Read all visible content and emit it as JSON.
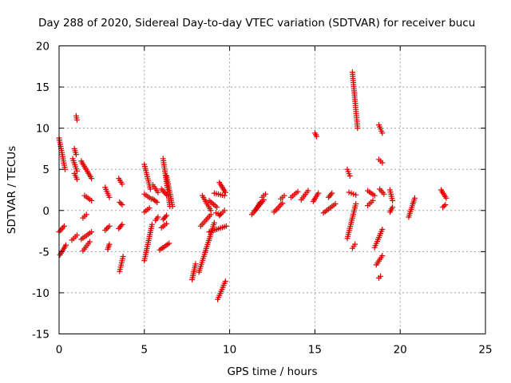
{
  "chart_data": {
    "type": "scatter",
    "title": "Day 288 of 2020, Sidereal Day-to-day VTEC variation (SDTVAR) for receiver bucu",
    "xlabel": "GPS time / hours",
    "ylabel": "SDTVAR / TECUs",
    "xlim": [
      0,
      25
    ],
    "ylim": [
      -15,
      20
    ],
    "xticks": [
      0,
      5,
      10,
      15,
      20,
      25
    ],
    "yticks": [
      -15,
      -10,
      -5,
      0,
      5,
      10,
      15,
      20
    ],
    "xtick_labels": [
      "0",
      "5",
      "10",
      "15",
      "20",
      "25"
    ],
    "ytick_labels": [
      "-15",
      "-10",
      "-5",
      "0",
      "5",
      "10",
      "15",
      "20"
    ],
    "grid": true,
    "marker": "+",
    "color": "#e00000",
    "tracks": [
      {
        "x": [
          0.0,
          0.35
        ],
        "y": [
          8.8,
          5.0
        ]
      },
      {
        "x": [
          0.05,
          0.4
        ],
        "y": [
          -5.4,
          -4.2
        ]
      },
      {
        "x": [
          0.0,
          0.3
        ],
        "y": [
          -2.6,
          -1.9
        ]
      },
      {
        "x": [
          0.8,
          1.05
        ],
        "y": [
          6.3,
          4.8
        ]
      },
      {
        "x": [
          0.9,
          1.0
        ],
        "y": [
          7.5,
          6.8
        ]
      },
      {
        "x": [
          0.9,
          1.05
        ],
        "y": [
          4.5,
          3.8
        ]
      },
      {
        "x": [
          1.0,
          1.05
        ],
        "y": [
          11.5,
          11.0
        ]
      },
      {
        "x": [
          0.75,
          1.05
        ],
        "y": [
          -3.6,
          -3.0
        ]
      },
      {
        "x": [
          1.3,
          1.9
        ],
        "y": [
          6.0,
          3.9
        ]
      },
      {
        "x": [
          1.5,
          1.9
        ],
        "y": [
          1.8,
          1.2
        ]
      },
      {
        "x": [
          1.3,
          1.9
        ],
        "y": [
          -3.5,
          -2.6
        ]
      },
      {
        "x": [
          1.4,
          1.8
        ],
        "y": [
          -4.9,
          -3.8
        ]
      },
      {
        "x": [
          1.4,
          1.6
        ],
        "y": [
          -0.9,
          -0.5
        ]
      },
      {
        "x": [
          2.7,
          2.95
        ],
        "y": [
          2.8,
          1.6
        ]
      },
      {
        "x": [
          2.7,
          2.95
        ],
        "y": [
          -2.4,
          -1.9
        ]
      },
      {
        "x": [
          2.85,
          2.95
        ],
        "y": [
          -4.7,
          -4.1
        ]
      },
      {
        "x": [
          3.5,
          3.7
        ],
        "y": [
          3.9,
          3.2
        ]
      },
      {
        "x": [
          3.55,
          3.7
        ],
        "y": [
          1.0,
          0.7
        ]
      },
      {
        "x": [
          3.5,
          3.7
        ],
        "y": [
          -2.2,
          -1.7
        ]
      },
      {
        "x": [
          3.55,
          3.75
        ],
        "y": [
          -7.4,
          -5.6
        ]
      },
      {
        "x": [
          5.0,
          5.35
        ],
        "y": [
          5.6,
          2.6
        ]
      },
      {
        "x": [
          5.0,
          5.4
        ],
        "y": [
          2.0,
          1.4
        ]
      },
      {
        "x": [
          5.0,
          5.3
        ],
        "y": [
          -0.2,
          0.3
        ]
      },
      {
        "x": [
          5.0,
          5.45
        ],
        "y": [
          -6.1,
          -1.7
        ]
      },
      {
        "x": [
          5.5,
          5.8
        ],
        "y": [
          3.1,
          2.2
        ]
      },
      {
        "x": [
          5.5,
          5.75
        ],
        "y": [
          1.4,
          1.0
        ]
      },
      {
        "x": [
          5.65,
          5.8
        ],
        "y": [
          -1.2,
          -0.8
        ]
      },
      {
        "x": [
          6.0,
          6.3
        ],
        "y": [
          2.6,
          1.9
        ]
      },
      {
        "x": [
          6.1,
          6.5
        ],
        "y": [
          6.3,
          0.5
        ]
      },
      {
        "x": [
          6.3,
          6.65
        ],
        "y": [
          4.2,
          0.5
        ]
      },
      {
        "x": [
          5.9,
          6.45
        ],
        "y": [
          -4.8,
          -4.0
        ]
      },
      {
        "x": [
          6.0,
          6.3
        ],
        "y": [
          -2.1,
          -1.6
        ]
      },
      {
        "x": [
          6.1,
          6.3
        ],
        "y": [
          -1.1,
          -0.6
        ]
      },
      {
        "x": [
          7.8,
          8.0
        ],
        "y": [
          -8.4,
          -6.5
        ]
      },
      {
        "x": [
          8.2,
          9.1
        ],
        "y": [
          -7.5,
          -1.5
        ]
      },
      {
        "x": [
          8.3,
          8.9
        ],
        "y": [
          -1.9,
          -0.5
        ]
      },
      {
        "x": [
          8.4,
          8.9
        ],
        "y": [
          1.8,
          0.0
        ]
      },
      {
        "x": [
          8.8,
          9.25
        ],
        "y": [
          1.2,
          0.4
        ]
      },
      {
        "x": [
          9.1,
          9.7
        ],
        "y": [
          2.1,
          1.8
        ]
      },
      {
        "x": [
          9.4,
          9.75
        ],
        "y": [
          3.4,
          2.2
        ]
      },
      {
        "x": [
          9.2,
          9.45
        ],
        "y": [
          -0.3,
          -0.5
        ]
      },
      {
        "x": [
          9.4,
          9.7
        ],
        "y": [
          -0.6,
          0.0
        ]
      },
      {
        "x": [
          8.8,
          9.8
        ],
        "y": [
          -2.6,
          -1.9
        ]
      },
      {
        "x": [
          9.3,
          9.75
        ],
        "y": [
          -10.8,
          -8.6
        ]
      },
      {
        "x": [
          11.3,
          12.0
        ],
        "y": [
          -0.5,
          1.3
        ]
      },
      {
        "x": [
          11.5,
          11.8
        ],
        "y": [
          0.0,
          1.0
        ]
      },
      {
        "x": [
          11.9,
          12.1
        ],
        "y": [
          1.6,
          2.0
        ]
      },
      {
        "x": [
          12.6,
          13.1
        ],
        "y": [
          -0.2,
          0.9
        ]
      },
      {
        "x": [
          13.0,
          13.2
        ],
        "y": [
          1.4,
          1.8
        ]
      },
      {
        "x": [
          13.6,
          14.0
        ],
        "y": [
          1.6,
          2.3
        ]
      },
      {
        "x": [
          14.2,
          14.6
        ],
        "y": [
          1.3,
          2.4
        ]
      },
      {
        "x": [
          14.9,
          15.2
        ],
        "y": [
          1.1,
          2.1
        ]
      },
      {
        "x": [
          15.0,
          15.1
        ],
        "y": [
          9.4,
          9.0
        ]
      },
      {
        "x": [
          15.8,
          16.0
        ],
        "y": [
          1.6,
          2.1
        ]
      },
      {
        "x": [
          15.5,
          16.2
        ],
        "y": [
          -0.3,
          0.8
        ]
      },
      {
        "x": [
          16.9,
          17.05
        ],
        "y": [
          5.0,
          4.2
        ]
      },
      {
        "x": [
          17.0,
          17.4
        ],
        "y": [
          2.2,
          1.9
        ]
      },
      {
        "x": [
          17.2,
          17.5
        ],
        "y": [
          16.8,
          10.0
        ]
      },
      {
        "x": [
          16.9,
          17.4
        ],
        "y": [
          -3.4,
          0.8
        ]
      },
      {
        "x": [
          17.2,
          17.35
        ],
        "y": [
          -4.6,
          -4.1
        ]
      },
      {
        "x": [
          18.1,
          18.5
        ],
        "y": [
          2.4,
          1.8
        ]
      },
      {
        "x": [
          18.1,
          18.4
        ],
        "y": [
          0.6,
          1.2
        ]
      },
      {
        "x": [
          18.5,
          18.95
        ],
        "y": [
          -4.5,
          -2.3
        ]
      },
      {
        "x": [
          18.6,
          18.95
        ],
        "y": [
          -6.6,
          -5.5
        ]
      },
      {
        "x": [
          18.75,
          18.85
        ],
        "y": [
          -8.2,
          -8.0
        ]
      },
      {
        "x": [
          18.75,
          18.95
        ],
        "y": [
          10.4,
          9.4
        ]
      },
      {
        "x": [
          18.75,
          18.95
        ],
        "y": [
          6.2,
          5.8
        ]
      },
      {
        "x": [
          18.8,
          19.05
        ],
        "y": [
          2.6,
          2.0
        ]
      },
      {
        "x": [
          19.4,
          19.55
        ],
        "y": [
          2.5,
          1.2
        ]
      },
      {
        "x": [
          19.4,
          19.55
        ],
        "y": [
          -0.2,
          0.4
        ]
      },
      {
        "x": [
          20.5,
          20.85
        ],
        "y": [
          -0.8,
          1.5
        ]
      },
      {
        "x": [
          22.4,
          22.7
        ],
        "y": [
          2.5,
          1.5
        ]
      },
      {
        "x": [
          22.5,
          22.65
        ],
        "y": [
          0.4,
          0.7
        ]
      }
    ]
  }
}
